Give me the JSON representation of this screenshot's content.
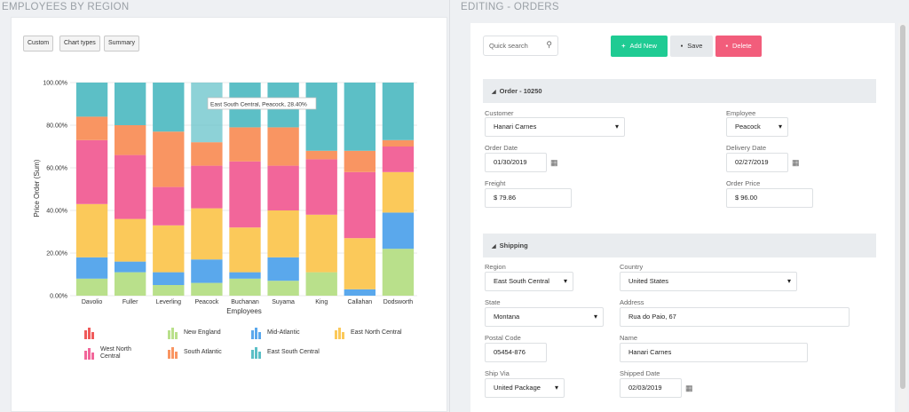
{
  "left": {
    "title": "EMPLOYEES BY REGION",
    "toolbar": {
      "custom": "Custom",
      "chart_types": "Chart types",
      "summary": "Summary"
    }
  },
  "right": {
    "title": "EDITING - ORDERS",
    "search": {
      "placeholder": "Quick search",
      "icon": "search-icon"
    },
    "buttons": {
      "add_new": "Add New",
      "save": "Save",
      "delete": "Delete"
    },
    "order_section": {
      "title": "Order - 10250",
      "customer_label": "Customer",
      "customer_value": "Hanari Carnes",
      "employee_label": "Employee",
      "employee_value": "Peacock",
      "order_date_label": "Order Date",
      "order_date_value": "01/30/2019",
      "delivery_date_label": "Delivery Date",
      "delivery_date_value": "02/27/2019",
      "freight_label": "Freight",
      "freight_value": "$ 79.86",
      "order_price_label": "Order Price",
      "order_price_value": "$ 96.00"
    },
    "shipping_section": {
      "title": "Shipping",
      "region_label": "Region",
      "region_value": "East South Central",
      "country_label": "Country",
      "country_value": "United States",
      "state_label": "State",
      "state_value": "Montana",
      "address_label": "Address",
      "address_value": "Rua do Paio, 67",
      "postal_label": "Postal Code",
      "postal_value": "05454-876",
      "name_label": "Name",
      "name_value": "Hanari Carnes",
      "shipvia_label": "Ship Via",
      "shipvia_value": "United Package",
      "shipped_label": "Shipped Date",
      "shipped_value": "02/03/2019"
    },
    "colors": {
      "add": "#1fcb93",
      "delete": "#f25d7b",
      "save": "#e6e9ec"
    }
  },
  "chart_data": {
    "type": "bar",
    "stacked": true,
    "percent": true,
    "categories": [
      "Davolio",
      "Fuller",
      "Leverling",
      "Peacock",
      "Buchanan",
      "Suyama",
      "King",
      "Callahan",
      "Dodsworth"
    ],
    "xlabel": "Employees",
    "ylabel": "Price Order (Sum)",
    "ylim": [
      0,
      100
    ],
    "yticks": [
      "0.00%",
      "20.00%",
      "40.00%",
      "60.00%",
      "80.00%",
      "100.00%"
    ],
    "tooltip": "East South Central, Peacock, 28.40%",
    "series": [
      {
        "name": "New England",
        "color": "#b9e08b",
        "values": [
          8,
          11,
          5,
          6,
          8,
          7,
          11,
          0,
          22
        ]
      },
      {
        "name": "Mid-Atlantic",
        "color": "#5aa8ec",
        "values": [
          10,
          5,
          6,
          11,
          3,
          11,
          0,
          3,
          17
        ]
      },
      {
        "name": "East North Central",
        "color": "#fbc95a",
        "values": [
          25,
          20,
          22,
          24,
          21,
          22,
          27,
          24,
          19
        ]
      },
      {
        "name": "West North Central",
        "color": "#f2669a",
        "values": [
          30,
          30,
          18,
          20,
          31,
          21,
          26,
          31,
          12
        ]
      },
      {
        "name": "South Atlantic",
        "color": "#f99562",
        "values": [
          11,
          14,
          26,
          11,
          16,
          18,
          4,
          10,
          3
        ]
      },
      {
        "name": "East South Central",
        "color": "#5cbfc6",
        "values": [
          16,
          20,
          23,
          28,
          21,
          21,
          32,
          32,
          27
        ]
      }
    ],
    "legend": [
      {
        "name": "",
        "color": "#f05a5a"
      },
      {
        "name": "New England",
        "color": "#b9e08b"
      },
      {
        "name": "Mid-Atlantic",
        "color": "#5aa8ec"
      },
      {
        "name": "East North Central",
        "color": "#fbc95a"
      },
      {
        "name": "West North Central",
        "color": "#f2669a"
      },
      {
        "name": "South Atlantic",
        "color": "#f99562"
      },
      {
        "name": "East South Central",
        "color": "#5cbfc6"
      }
    ]
  }
}
